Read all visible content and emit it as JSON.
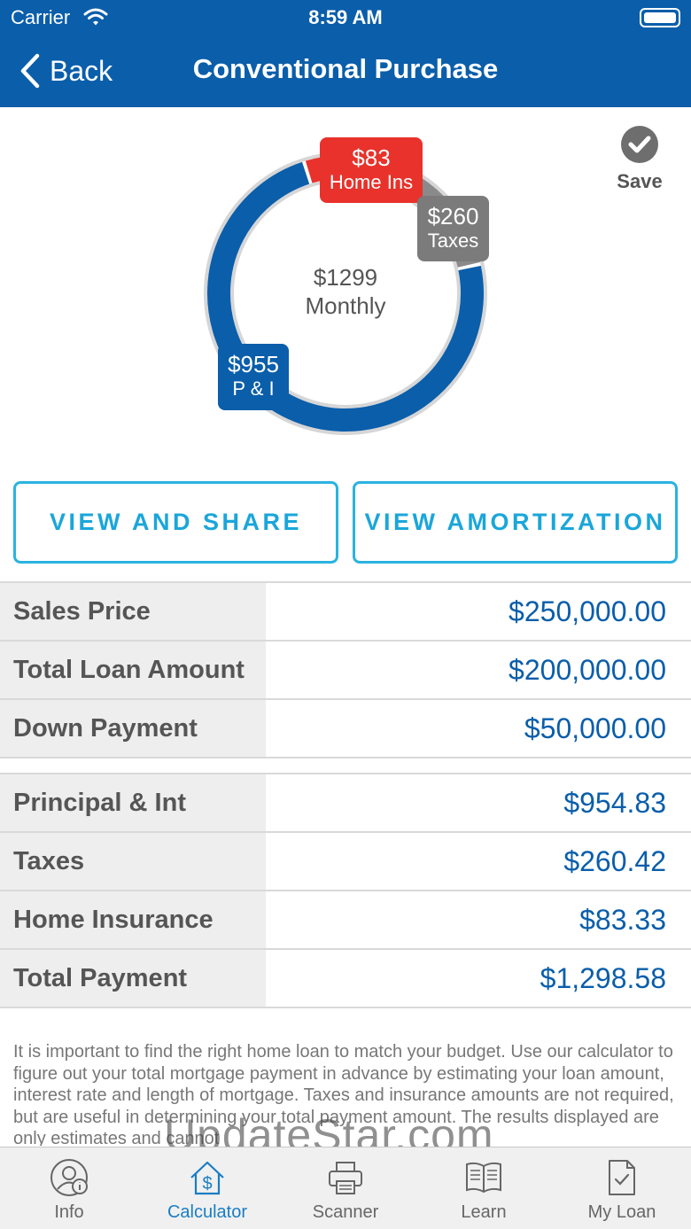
{
  "status_bar": {
    "carrier": "Carrier",
    "time": "8:59 AM"
  },
  "nav": {
    "back_label": "Back",
    "title": "Conventional Purchase"
  },
  "chart_data": {
    "type": "pie",
    "style": "donut",
    "center_amount": "$1299",
    "center_label": "Monthly",
    "slices": [
      {
        "label": "P & I",
        "display": "$955",
        "value": 954.83,
        "color": "#0a5eaa"
      },
      {
        "label": "Taxes",
        "display": "$260",
        "value": 260.42,
        "color": "#8a8a8a"
      },
      {
        "label": "Home Ins",
        "display": "$83",
        "value": 83.33,
        "color": "#e8322b"
      }
    ]
  },
  "save_label": "Save",
  "buttons": {
    "view_share": "VIEW AND SHARE",
    "view_amort": "VIEW AMORTIZATION"
  },
  "loan_table": [
    {
      "label": "Sales Price",
      "value": "$250,000.00"
    },
    {
      "label": "Total Loan Amount",
      "value": "$200,000.00"
    },
    {
      "label": "Down Payment",
      "value": "$50,000.00"
    }
  ],
  "payment_table": [
    {
      "label": "Principal & Int",
      "value": "$954.83"
    },
    {
      "label": "Taxes",
      "value": "$260.42"
    },
    {
      "label": "Home Insurance",
      "value": "$83.33"
    },
    {
      "label": "Total Payment",
      "value": "$1,298.58"
    }
  ],
  "disclaimer": "It is important to find the right home loan to match your budget. Use our calculator to figure out your total mortgage payment in advance by estimating your loan amount, interest rate and length of mortgage. Taxes and insurance amounts are not required, but are useful in determining your total payment amount. The results displayed are only estimates and cannot",
  "watermark": "UpdateStar.com",
  "tabs": [
    {
      "label": "Info",
      "icon": "user-info-icon"
    },
    {
      "label": "Calculator",
      "icon": "house-dollar-icon",
      "active": true
    },
    {
      "label": "Scanner",
      "icon": "printer-icon"
    },
    {
      "label": "Learn",
      "icon": "book-icon"
    },
    {
      "label": "My Loan",
      "icon": "document-check-icon"
    }
  ],
  "colors": {
    "header": "#0a5eaa",
    "accent": "#1aa6da",
    "value_text": "#0a5eaa",
    "home_ins": "#e8322b",
    "taxes": "#8a8a8a"
  }
}
